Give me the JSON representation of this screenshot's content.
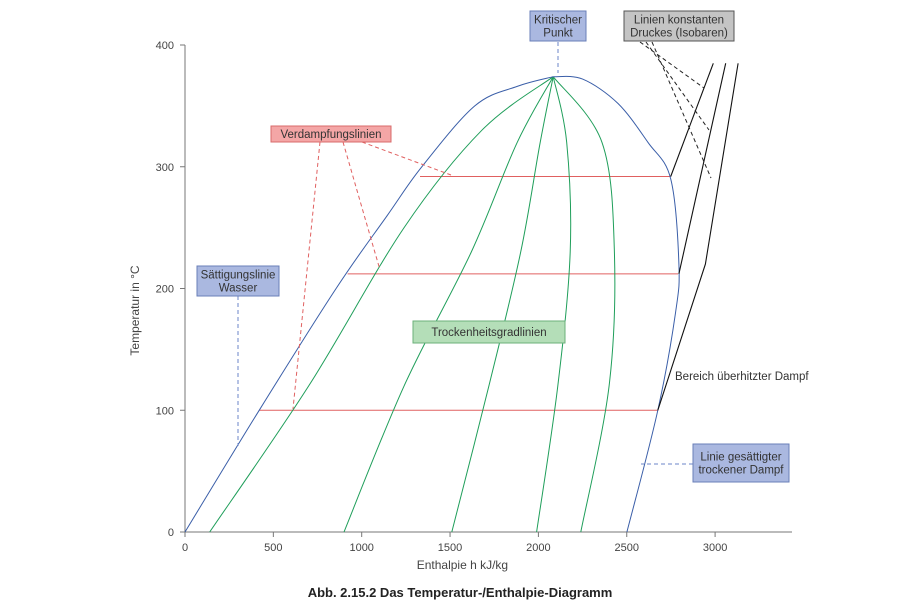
{
  "chart_data": {
    "type": "line",
    "title": "Abb. 2.15.2 Das Temperatur-/Enthalpie-Diagramm",
    "xlabel": "Enthalpie h kJ/kg",
    "ylabel": "Temperatur in °C",
    "xlim": [
      0,
      3450
    ],
    "ylim": [
      0,
      400
    ],
    "x_ticks": [
      "0",
      "500",
      "1000",
      "1500",
      "2000",
      "2500",
      "3000"
    ],
    "y_ticks": [
      "0",
      "100",
      "200",
      "300",
      "400"
    ],
    "grid": false,
    "colors": {
      "saturation": "#3a5ea8",
      "quality": "#1f9e5a",
      "evaporation": "#e06060",
      "isobar": "#111111",
      "leader_blue": "#6b86c8",
      "leader_red": "#e06060",
      "leader_black": "#222222",
      "box_blue_fill": "#aab8e0",
      "box_blue_stroke": "#6a7fb8",
      "box_red_fill": "#f4a6a6",
      "box_red_stroke": "#d86b6b",
      "box_green_fill": "#b4deb8",
      "box_green_stroke": "#6bb07a",
      "box_gray_fill": "#c4c4c4",
      "box_gray_stroke": "#555555"
    },
    "series": [
      {
        "name": "Sättigungslinie Wasser",
        "role": "saturation",
        "points": [
          [
            0,
            0
          ],
          [
            420,
            100
          ],
          [
            855,
            200
          ],
          [
            1145,
            260
          ],
          [
            1340,
            300
          ],
          [
            1640,
            350
          ],
          [
            1880,
            366
          ],
          [
            2084,
            374
          ]
        ]
      },
      {
        "name": "Linie gesättigter trockener Dampf",
        "role": "saturation",
        "points": [
          [
            2084,
            374
          ],
          [
            2250,
            372
          ],
          [
            2450,
            352
          ],
          [
            2620,
            320
          ],
          [
            2749,
            290
          ],
          [
            2795,
            220
          ],
          [
            2776,
            180
          ],
          [
            2676,
            100
          ],
          [
            2501,
            0
          ]
        ]
      },
      {
        "name": "Trockenheitsgrad 1",
        "role": "quality",
        "points": [
          [
            2084,
            374
          ],
          [
            1680,
            330
          ],
          [
            1240,
            250
          ],
          [
            700,
            120
          ],
          [
            140,
            0
          ]
        ]
      },
      {
        "name": "Trockenheitsgrad 2",
        "role": "quality",
        "points": [
          [
            2084,
            374
          ],
          [
            1880,
            320
          ],
          [
            1620,
            230
          ],
          [
            1240,
            120
          ],
          [
            900,
            0
          ]
        ]
      },
      {
        "name": "Trockenheitsgrad 3",
        "role": "quality",
        "points": [
          [
            2084,
            374
          ],
          [
            2010,
            320
          ],
          [
            1900,
            230
          ],
          [
            1720,
            120
          ],
          [
            1510,
            0
          ]
        ]
      },
      {
        "name": "Trockenheitsgrad 4",
        "role": "quality",
        "points": [
          [
            2084,
            374
          ],
          [
            2160,
            320
          ],
          [
            2180,
            230
          ],
          [
            2110,
            120
          ],
          [
            1990,
            0
          ]
        ]
      },
      {
        "name": "Trockenheitsgrad 5",
        "role": "quality",
        "points": [
          [
            2084,
            374
          ],
          [
            2360,
            320
          ],
          [
            2430,
            230
          ],
          [
            2400,
            120
          ],
          [
            2240,
            0
          ]
        ]
      },
      {
        "name": "Verdampfungslinie 100 °C",
        "role": "evaporation",
        "points": [
          [
            420,
            100
          ],
          [
            2676,
            100
          ]
        ]
      },
      {
        "name": "Verdampfungslinie 212 °C",
        "role": "evaporation",
        "points": [
          [
            920,
            212
          ],
          [
            2790,
            212
          ]
        ]
      },
      {
        "name": "Verdampfungslinie 292 °C",
        "role": "evaporation",
        "points": [
          [
            1330,
            292
          ],
          [
            2749,
            292
          ]
        ]
      },
      {
        "name": "Isobare 1",
        "role": "isobar",
        "points": [
          [
            2749,
            292
          ],
          [
            2990,
            385
          ]
        ]
      },
      {
        "name": "Isobare 2",
        "role": "isobar",
        "points": [
          [
            2795,
            212
          ],
          [
            3060,
            385
          ]
        ]
      },
      {
        "name": "Isobare 3",
        "role": "isobar",
        "points": [
          [
            2676,
            100
          ],
          [
            2945,
            220
          ],
          [
            3130,
            385
          ]
        ]
      }
    ],
    "annotations": {
      "kritischer_punkt": "Kritischer Punkt",
      "isobaren": "Linien konstanten Drucks (Isobaren)",
      "verdampfungslinien": "Verdampfungslinien",
      "saettigungslinie_wasser": "Sättigungslinie Wasser",
      "trockenheitsgradlinien": "Trockenheitsgradlinien",
      "ueberhitzter_dampf": "Bereich überhitzter Dampf",
      "gesaettigter_dampf": "Linie gesättigter trockener Dampf"
    }
  }
}
